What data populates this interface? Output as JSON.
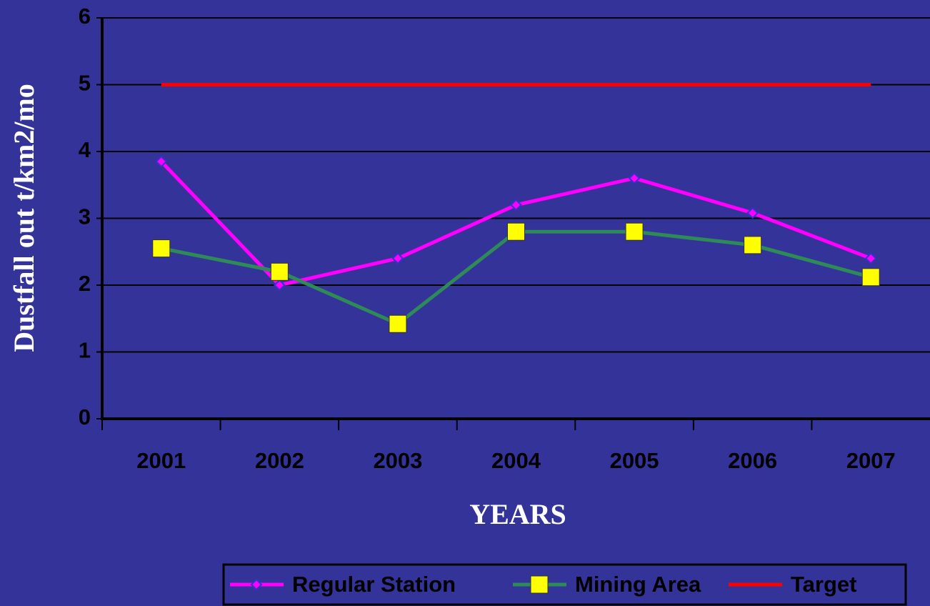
{
  "chart_data": {
    "type": "line",
    "y_label": "Dustfall out t/km2/mo",
    "x_label": "YEARS",
    "categories": [
      "2001",
      "2002",
      "2003",
      "2004",
      "2005",
      "2006",
      "2007"
    ],
    "series": [
      {
        "name": "Regular Station",
        "color": "#ff00ff",
        "marker": "diamond",
        "values": [
          3.85,
          2.0,
          2.4,
          3.2,
          3.6,
          3.08,
          2.4
        ]
      },
      {
        "name": "Mining Area",
        "color": "#2e8b57",
        "marker": "square",
        "values": [
          2.55,
          2.2,
          1.42,
          2.8,
          2.8,
          2.6,
          2.12
        ]
      },
      {
        "name": "Target",
        "color": "#ff0000",
        "marker": "none",
        "values": [
          5,
          5,
          5,
          5,
          5,
          5,
          5
        ]
      }
    ],
    "ylim": [
      0,
      6
    ],
    "yticks": [
      0,
      1,
      2,
      3,
      4,
      5,
      6
    ],
    "grid": true,
    "legend": "bottom-right"
  }
}
